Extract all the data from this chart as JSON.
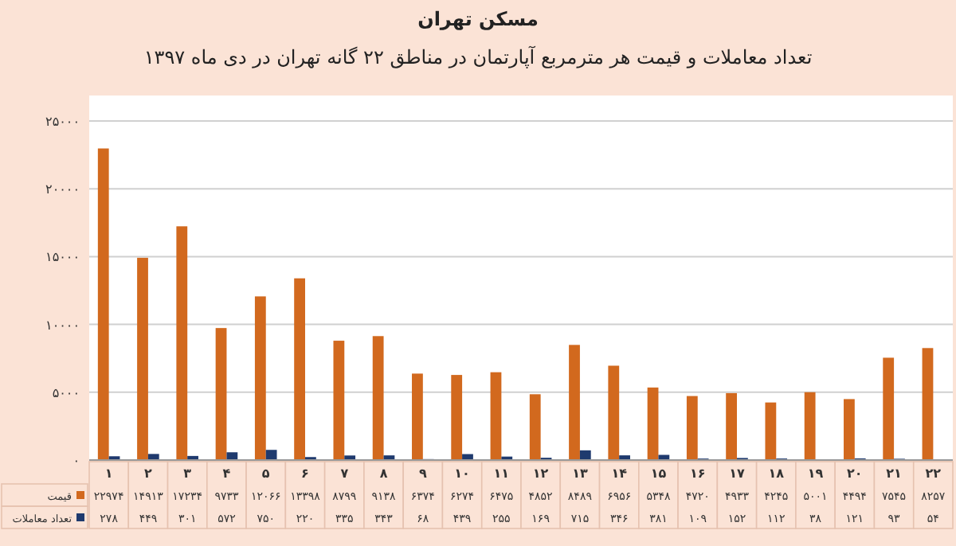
{
  "chart_data": {
    "type": "bar",
    "title": "مسکن تهران",
    "subtitle": "تعداد معاملات و قیمت هر مترمربع آپارتمان در مناطق ۲۲ گانه تهران در دی ماه ۱۳۹۷",
    "categories": [
      "۱",
      "۲",
      "۳",
      "۴",
      "۵",
      "۶",
      "۷",
      "۸",
      "۹",
      "۱۰",
      "۱۱",
      "۱۲",
      "۱۳",
      "۱۴",
      "۱۵",
      "۱۶",
      "۱۷",
      "۱۸",
      "۱۹",
      "۲۰",
      "۲۱",
      "۲۲"
    ],
    "ylim": [
      0,
      25000
    ],
    "yticks": [
      {
        "value": 0,
        "label": "۰"
      },
      {
        "value": 5000,
        "label": "۵۰۰۰"
      },
      {
        "value": 10000,
        "label": "۱۰۰۰۰"
      },
      {
        "value": 15000,
        "label": "۱۵۰۰۰"
      },
      {
        "value": 20000,
        "label": "۲۰۰۰۰"
      },
      {
        "value": 25000,
        "label": "۲۵۰۰۰"
      }
    ],
    "grid": "y",
    "legend": "bottom",
    "series": [
      {
        "name": "قیمت",
        "color": "#d2691e",
        "values": [
          22974,
          14913,
          17234,
          9733,
          12066,
          13398,
          8799,
          9138,
          6374,
          6274,
          6475,
          4852,
          8489,
          6956,
          5348,
          4720,
          4933,
          4245,
          5001,
          4494,
          7545,
          8257
        ],
        "value_labels": [
          "۲۲۹۷۴",
          "۱۴۹۱۳",
          "۱۷۲۳۴",
          "۹۷۳۳",
          "۱۲۰۶۶",
          "۱۳۳۹۸",
          "۸۷۹۹",
          "۹۱۳۸",
          "۶۳۷۴",
          "۶۲۷۴",
          "۶۴۷۵",
          "۴۸۵۲",
          "۸۴۸۹",
          "۶۹۵۶",
          "۵۳۴۸",
          "۴۷۲۰",
          "۴۹۳۳",
          "۴۲۴۵",
          "۵۰۰۱",
          "۴۴۹۴",
          "۷۵۴۵",
          "۸۲۵۷"
        ]
      },
      {
        "name": "تعداد معاملات",
        "color": "#1f3a6e",
        "values": [
          278,
          449,
          301,
          572,
          750,
          220,
          335,
          343,
          68,
          439,
          255,
          169,
          715,
          346,
          381,
          109,
          152,
          112,
          38,
          121,
          93,
          54
        ],
        "value_labels": [
          "۲۷۸",
          "۴۴۹",
          "۳۰۱",
          "۵۷۲",
          "۷۵۰",
          "۲۲۰",
          "۳۳۵",
          "۳۴۳",
          "۶۸",
          "۴۳۹",
          "۲۵۵",
          "۱۶۹",
          "۷۱۵",
          "۳۴۶",
          "۳۸۱",
          "۱۰۹",
          "۱۵۲",
          "۱۱۲",
          "۳۸",
          "۱۲۱",
          "۹۳",
          "۵۴"
        ]
      }
    ]
  }
}
